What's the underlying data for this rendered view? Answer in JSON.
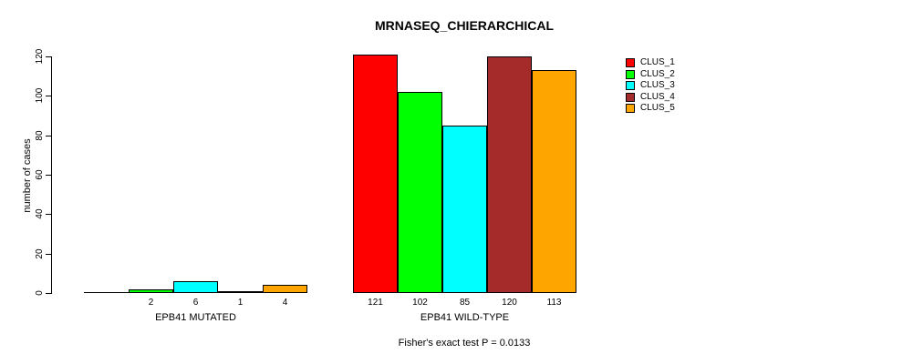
{
  "chart_data": {
    "type": "bar",
    "title": "MRNASEQ_CHIERARCHICAL",
    "ylabel": "number of cases",
    "xlabel": "",
    "ylim": [
      0,
      120
    ],
    "yticks": [
      0,
      20,
      40,
      60,
      80,
      100,
      120
    ],
    "grid": false,
    "legend_position": "right",
    "categories": [
      "EPB41 MUTATED",
      "EPB41 WILD-TYPE"
    ],
    "series": [
      {
        "name": "CLUS_1",
        "color": "#FF0000",
        "values": [
          0,
          121
        ]
      },
      {
        "name": "CLUS_2",
        "color": "#00FF00",
        "values": [
          2,
          102
        ]
      },
      {
        "name": "CLUS_3",
        "color": "#00FFFF",
        "values": [
          6,
          85
        ]
      },
      {
        "name": "CLUS_4",
        "color": "#A52A2A",
        "values": [
          1,
          120
        ]
      },
      {
        "name": "CLUS_5",
        "color": "#FFA500",
        "values": [
          4,
          113
        ]
      }
    ],
    "groups": [
      {
        "label": "EPB41 MUTATED",
        "values": [
          0,
          2,
          6,
          1,
          4
        ],
        "bar_labels": [
          "",
          "2",
          "6",
          "1",
          "4"
        ]
      },
      {
        "label": "EPB41 WILD-TYPE",
        "values": [
          121,
          102,
          85,
          120,
          113
        ],
        "bar_labels": [
          "121",
          "102",
          "85",
          "120",
          "113"
        ]
      }
    ],
    "annotation": "Fisher's exact test P = 0.0133",
    "axis_color": "#000000",
    "background_color": "#FFFFFF"
  }
}
